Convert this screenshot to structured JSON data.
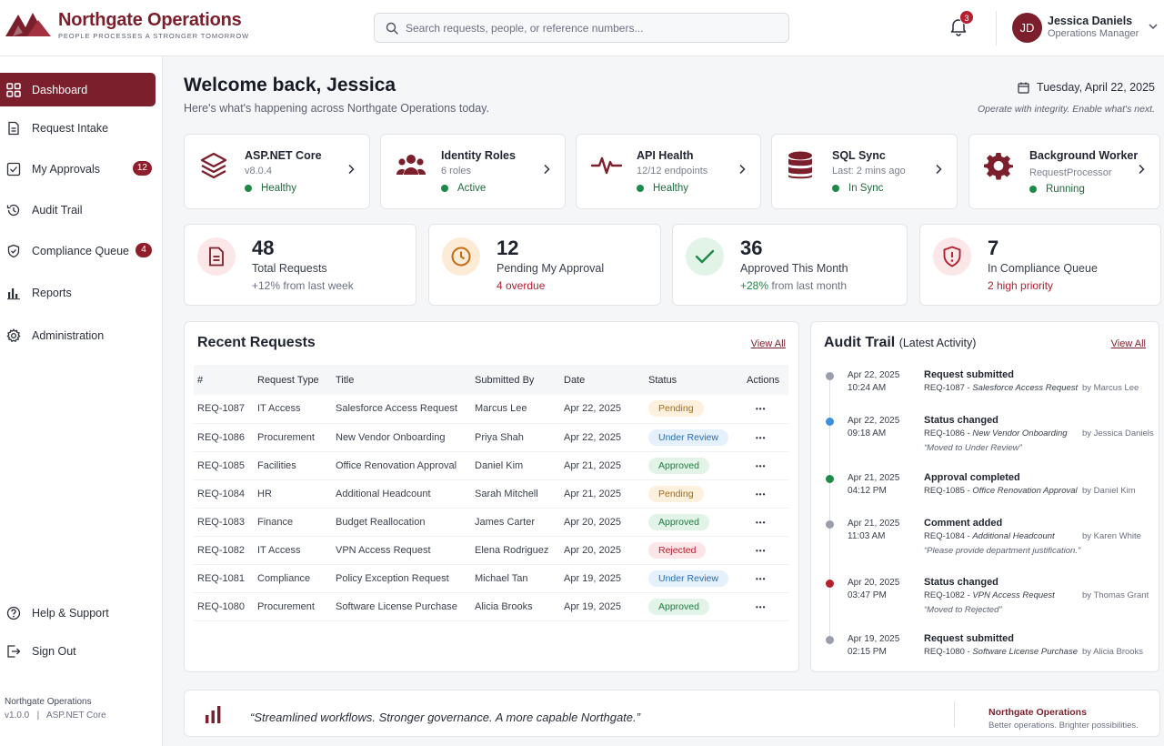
{
  "brand": {
    "name": "Northgate Operations",
    "tagline": "PEOPLE   PROCESSES   A STRONGER TOMORROW"
  },
  "search": {
    "placeholder": "Search requests, people, or reference numbers..."
  },
  "notifications": {
    "count": "3"
  },
  "user": {
    "initials": "JD",
    "name": "Jessica Daniels",
    "role": "Operations Manager"
  },
  "sidebar": {
    "items": [
      {
        "label": "Dashboard",
        "icon": "grid-icon",
        "active": true
      },
      {
        "label": "Request Intake",
        "icon": "document-icon"
      },
      {
        "label": "My Approvals",
        "icon": "check-square-icon",
        "badge": "12"
      },
      {
        "label": "Audit Trail",
        "icon": "history-icon"
      },
      {
        "label": "Compliance Queue",
        "icon": "shield-check-icon",
        "badge": "4"
      },
      {
        "label": "Reports",
        "icon": "bar-chart-icon"
      },
      {
        "label": "Administration",
        "icon": "gear-icon"
      }
    ],
    "bottom_items": [
      {
        "label": "Help & Support",
        "icon": "help-icon"
      },
      {
        "label": "Sign Out",
        "icon": "sign-out-icon"
      }
    ],
    "footer_org": "Northgate Operations",
    "footer_version": "v1.0.0   |   ASP.NET Core"
  },
  "welcome": {
    "title": "Welcome back, Jessica",
    "subtitle": "Here's what's happening across Northgate Operations today.",
    "date": "Tuesday, April 22, 2025",
    "motto": "Operate with integrity. Enable what's next."
  },
  "services": [
    {
      "name": "ASP.NET Core",
      "sub": "v8.0.4",
      "status": "Healthy",
      "icon": "layers-icon"
    },
    {
      "name": "Identity Roles",
      "sub": "6 roles",
      "status": "Active",
      "icon": "users-icon"
    },
    {
      "name": "API Health",
      "sub": "12/12 endpoints",
      "status": "Healthy",
      "icon": "pulse-icon"
    },
    {
      "name": "SQL Sync",
      "sub": "Last: 2 mins ago",
      "status": "In Sync",
      "icon": "database-icon"
    },
    {
      "name": "Background Worker",
      "sub": "RequestProcessor",
      "status": "Running",
      "icon": "gear-icon"
    }
  ],
  "stats": [
    {
      "value": "48",
      "label": "Total Requests",
      "note": "+12% from last week",
      "note_color": "#6b7080",
      "note_accent": "",
      "icon": "document-icon"
    },
    {
      "value": "12",
      "label": "Pending My Approval",
      "note": "4 overdue",
      "note_color": "#b3202f",
      "note_accent": "",
      "icon": "clock-icon"
    },
    {
      "value": "36",
      "label": "Approved This Month",
      "note": "from last month",
      "note_color": "#6b7080",
      "note_accent": "+28%",
      "icon": "check-icon"
    },
    {
      "value": "7",
      "label": "In Compliance Queue",
      "note": "2 high priority",
      "note_color": "#b3202f",
      "note_accent": "",
      "icon": "shield-alert-icon"
    }
  ],
  "recent": {
    "title": "Recent Requests",
    "view_all": "View All",
    "columns": [
      "#",
      "Request Type",
      "Title",
      "Submitted By",
      "Date",
      "Status",
      "Actions"
    ],
    "rows": [
      {
        "id": "REQ-1087",
        "type": "IT Access",
        "title": "Salesforce Access Request",
        "by": "Marcus Lee",
        "date": "Apr 22, 2025",
        "status": "Pending"
      },
      {
        "id": "REQ-1086",
        "type": "Procurement",
        "title": "New Vendor Onboarding",
        "by": "Priya Shah",
        "date": "Apr 22, 2025",
        "status": "Under Review"
      },
      {
        "id": "REQ-1085",
        "type": "Facilities",
        "title": "Office Renovation Approval",
        "by": "Daniel Kim",
        "date": "Apr 21, 2025",
        "status": "Approved"
      },
      {
        "id": "REQ-1084",
        "type": "HR",
        "title": "Additional Headcount",
        "by": "Sarah Mitchell",
        "date": "Apr 21, 2025",
        "status": "Pending"
      },
      {
        "id": "REQ-1083",
        "type": "Finance",
        "title": "Budget Reallocation",
        "by": "James Carter",
        "date": "Apr 20, 2025",
        "status": "Approved"
      },
      {
        "id": "REQ-1082",
        "type": "IT Access",
        "title": "VPN Access Request",
        "by": "Elena Rodriguez",
        "date": "Apr 20, 2025",
        "status": "Rejected"
      },
      {
        "id": "REQ-1081",
        "type": "Compliance",
        "title": "Policy Exception Request",
        "by": "Michael Tan",
        "date": "Apr 19, 2025",
        "status": "Under Review"
      },
      {
        "id": "REQ-1080",
        "type": "Procurement",
        "title": "Software License Purchase",
        "by": "Alicia Brooks",
        "date": "Apr 19, 2025",
        "status": "Approved"
      }
    ]
  },
  "audit": {
    "title": "Audit Trail",
    "title_suffix": "(Latest Activity)",
    "view_all": "View All",
    "entries": [
      {
        "date": "Apr 22, 2025",
        "time": "10:24 AM",
        "title": "Request submitted",
        "ref_id": "REQ-1087",
        "ref_title": "Salesforce Access Request",
        "quote": "",
        "by": "by Marcus Lee",
        "color": "#9aa0ab"
      },
      {
        "date": "Apr 22, 2025",
        "time": "09:18 AM",
        "title": "Status changed",
        "ref_id": "REQ-1086",
        "ref_title": "New Vendor Onboarding",
        "quote": "“Moved to Under Review”",
        "by": "by Jessica Daniels",
        "color": "#3b8fdb"
      },
      {
        "date": "Apr 21, 2025",
        "time": "04:12 PM",
        "title": "Approval completed",
        "ref_id": "REQ-1085",
        "ref_title": "Office Renovation Approval",
        "quote": "",
        "by": "by Daniel Kim",
        "color": "#1f8a47"
      },
      {
        "date": "Apr 21, 2025",
        "time": "11:03 AM",
        "title": "Comment added",
        "ref_id": "REQ-1084",
        "ref_title": "Additional Headcount",
        "quote": "“Please provide department justification.”",
        "by": "by Karen White",
        "color": "#9aa0ab"
      },
      {
        "date": "Apr 20, 2025",
        "time": "03:47 PM",
        "title": "Status changed",
        "ref_id": "REQ-1082",
        "ref_title": "VPN Access Request",
        "quote": "“Moved to Rejected”",
        "by": "by Thomas Grant",
        "color": "#b3202f"
      },
      {
        "date": "Apr 19, 2025",
        "time": "02:15 PM",
        "title": "Request submitted",
        "ref_id": "REQ-1080",
        "ref_title": "Software License Purchase",
        "quote": "",
        "by": "by Alicia Brooks",
        "color": "#9aa0ab"
      }
    ]
  },
  "banner": {
    "quote": "“Streamlined workflows. Stronger governance. A more capable Northgate.”",
    "org": "Northgate Operations",
    "tagline": "Better operations. Brighter possibilities."
  },
  "colors": {
    "brand": "#7a1f2b",
    "healthy": "#1f8a47",
    "danger": "#b3202f"
  }
}
